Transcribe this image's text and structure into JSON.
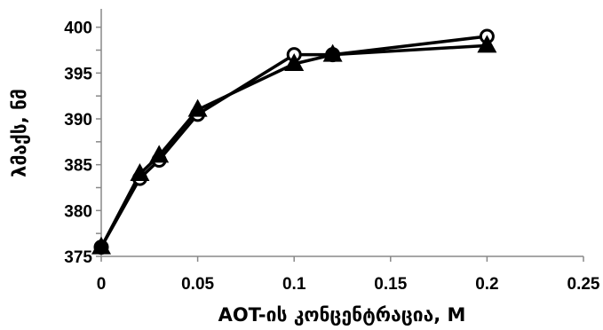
{
  "chart_data": {
    "type": "line",
    "title": "",
    "xlabel": "AOT-ის კონცენტრაცია, M",
    "ylabel": "λმაქს, ნმ",
    "xlim": [
      0,
      0.25
    ],
    "ylim": [
      375,
      402
    ],
    "x_ticks": [
      "0",
      "0.05",
      "0.1",
      "0.15",
      "0.2",
      "0.25"
    ],
    "y_ticks": [
      "375",
      "380",
      "385",
      "390",
      "395",
      "400"
    ],
    "grid": false,
    "legend": "none",
    "series": [
      {
        "marker": "circle",
        "color": "#000000",
        "x": [
          0,
          0.02,
          0.03,
          0.05,
          0.1,
          0.12,
          0.2
        ],
        "y": [
          376,
          383.5,
          385.5,
          390.5,
          397,
          397,
          399
        ]
      },
      {
        "marker": "triangle",
        "color": "#000000",
        "x": [
          0,
          0.02,
          0.03,
          0.05,
          0.1,
          0.12,
          0.2
        ],
        "y": [
          376,
          384,
          386,
          391,
          396,
          397,
          398
        ]
      }
    ]
  }
}
